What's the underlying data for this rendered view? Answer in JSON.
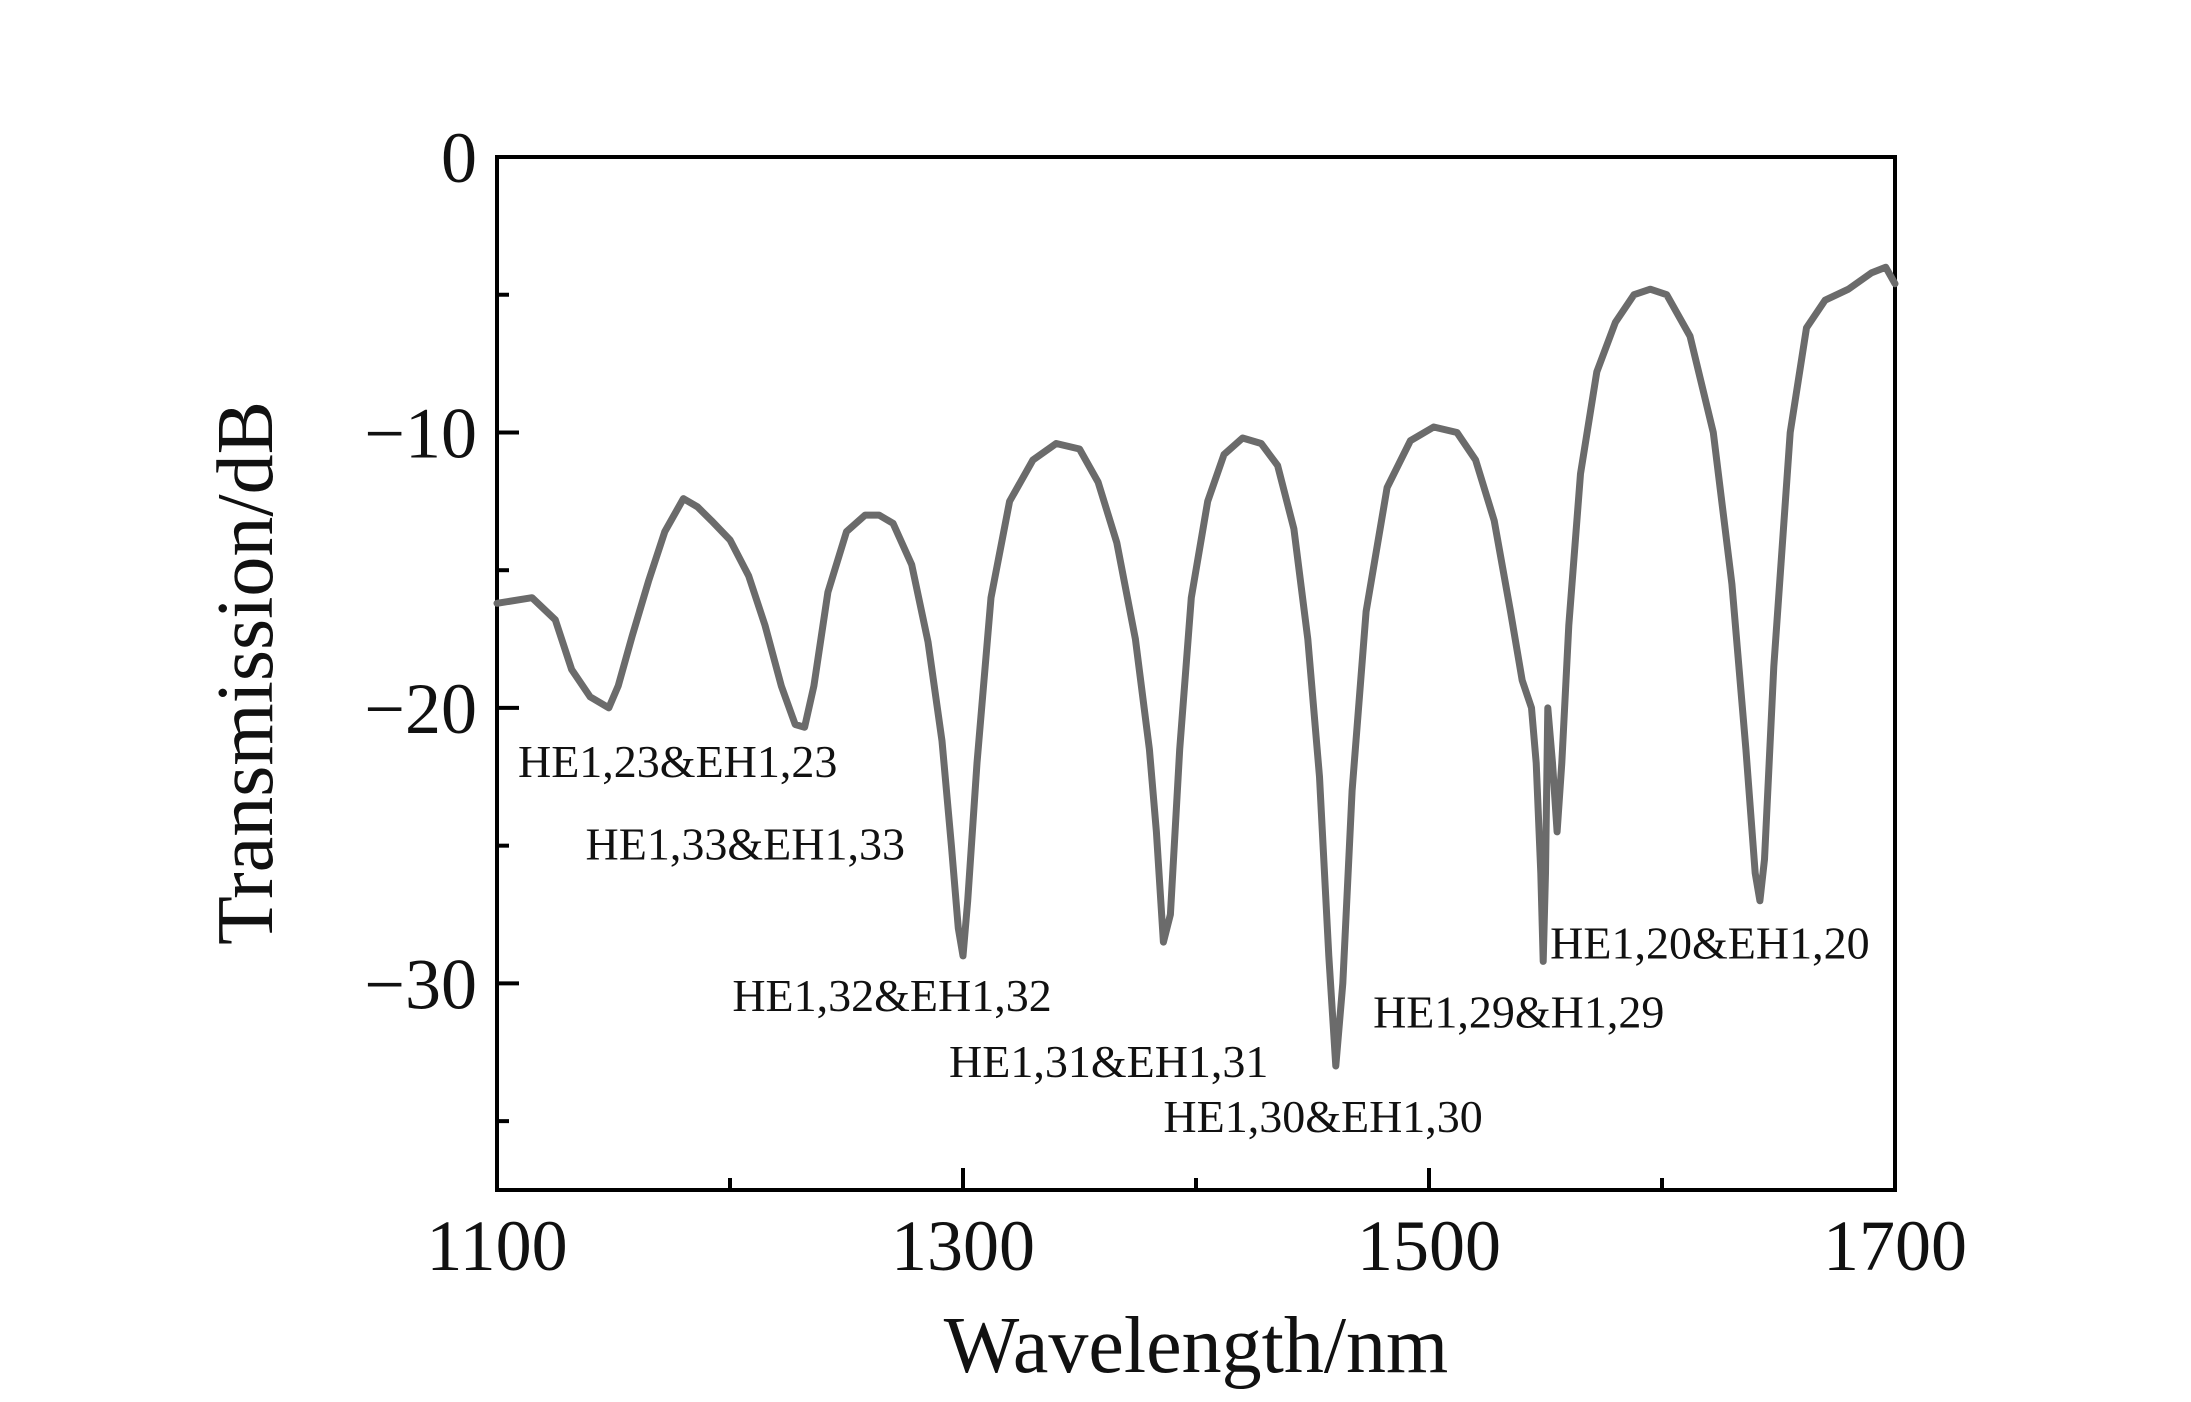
{
  "chart_data": {
    "type": "line",
    "title": "",
    "xlabel": "Wavelength/nm",
    "ylabel": "Transmission/dB",
    "xlim": [
      1100,
      1700
    ],
    "ylim": [
      -37.5,
      0
    ],
    "xticks": [
      1100,
      1300,
      1500,
      1700
    ],
    "xtick_labels": [
      "1100",
      "1300",
      "1500",
      "1700"
    ],
    "xminor": [
      1200,
      1400,
      1600
    ],
    "yticks": [
      0,
      -10,
      -20,
      -30
    ],
    "ytick_labels": [
      "0",
      "−10",
      "−20",
      "−30"
    ],
    "yminor": [
      -5,
      -15,
      -25,
      -35
    ],
    "grid": false,
    "line_color": "#6b6b6b",
    "series": [
      {
        "name": "Transmission",
        "x": [
          1100,
          1115,
          1125,
          1132,
          1140,
          1148,
          1152,
          1158,
          1165,
          1172,
          1180,
          1186,
          1192,
          1200,
          1208,
          1215,
          1222,
          1228,
          1232,
          1236,
          1242,
          1250,
          1258,
          1264,
          1270,
          1278,
          1285,
          1291,
          1295,
          1298,
          1300,
          1302,
          1306,
          1312,
          1320,
          1330,
          1340,
          1350,
          1358,
          1366,
          1374,
          1380,
          1383,
          1386,
          1389,
          1393,
          1398,
          1405,
          1412,
          1420,
          1428,
          1435,
          1442,
          1448,
          1453,
          1457,
          1460,
          1463,
          1467,
          1473,
          1482,
          1492,
          1502,
          1512,
          1520,
          1528,
          1535,
          1540,
          1544,
          1546,
          1548,
          1549,
          1550,
          1551,
          1553,
          1555,
          1557,
          1560,
          1565,
          1572,
          1580,
          1588,
          1595,
          1602,
          1612,
          1622,
          1630,
          1636,
          1640,
          1642,
          1644,
          1648,
          1655,
          1662,
          1670,
          1680,
          1690,
          1696,
          1700
        ],
        "values": [
          -16.2,
          -16.0,
          -16.8,
          -18.6,
          -19.6,
          -20.0,
          -19.2,
          -17.4,
          -15.4,
          -13.6,
          -12.4,
          -12.7,
          -13.2,
          -13.9,
          -15.2,
          -17.0,
          -19.2,
          -20.6,
          -20.7,
          -19.2,
          -15.8,
          -13.6,
          -13.0,
          -13.0,
          -13.3,
          -14.8,
          -17.6,
          -21.2,
          -25.0,
          -28.0,
          -29.0,
          -27.0,
          -22.0,
          -16.0,
          -12.5,
          -11.0,
          -10.4,
          -10.6,
          -11.8,
          -14.0,
          -17.5,
          -21.5,
          -24.5,
          -28.5,
          -27.5,
          -21.5,
          -16.0,
          -12.5,
          -10.8,
          -10.2,
          -10.4,
          -11.2,
          -13.5,
          -17.5,
          -22.5,
          -29.0,
          -33.0,
          -30.0,
          -23.0,
          -16.5,
          -12.0,
          -10.3,
          -9.8,
          -10.0,
          -11.0,
          -13.2,
          -16.5,
          -19.0,
          -20.0,
          -22.0,
          -26.0,
          -29.2,
          -26.0,
          -20.0,
          -22.0,
          -24.5,
          -22.0,
          -17.0,
          -11.5,
          -7.8,
          -6.0,
          -5.0,
          -4.8,
          -5.0,
          -6.5,
          -10.0,
          -15.5,
          -21.5,
          -26.0,
          -27.0,
          -25.5,
          -18.5,
          -10.0,
          -6.2,
          -5.2,
          -4.8,
          -4.2,
          -4.0,
          -4.6
        ]
      }
    ],
    "annotations": [
      {
        "text": "HE1,23&EH1,23",
        "x": 1109,
        "y": -22.5
      },
      {
        "text": "HE1,33&EH1,33",
        "x": 1138,
        "y": -25.5
      },
      {
        "text": "HE1,32&EH1,32",
        "x": 1201,
        "y": -31.0
      },
      {
        "text": "HE1,31&EH1,31",
        "x": 1294,
        "y": -33.4
      },
      {
        "text": "HE1,30&EH1,30",
        "x": 1386,
        "y": -35.4
      },
      {
        "text": "HE1,29&H1,29",
        "x": 1476,
        "y": -31.6
      },
      {
        "text": "HE1,20&EH1,20",
        "x": 1552,
        "y": -29.1
      }
    ]
  }
}
